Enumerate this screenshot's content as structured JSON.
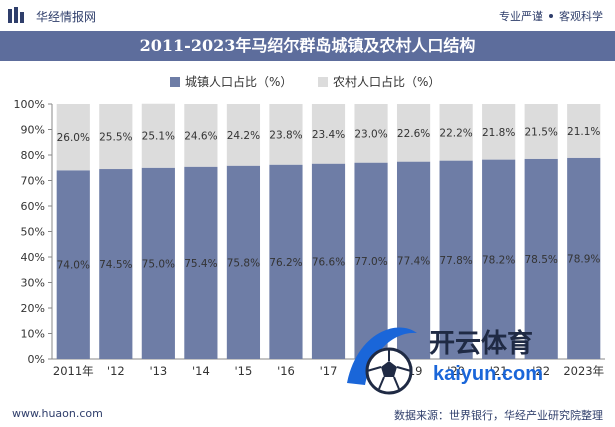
{
  "header": {
    "brand": "华经情报网",
    "slogan_left": "专业严谨",
    "slogan_right": "客观科学"
  },
  "title": "2011-2023年马绍尔群岛城镇及农村人口结构",
  "legend": {
    "urban": "城镇人口占比（%）",
    "rural": "农村人口占比（%）"
  },
  "colors": {
    "urban": "#6e7da6",
    "rural": "#dcdcdc",
    "title_bg": "#5d6d9c",
    "text": "#333333"
  },
  "chart_data": {
    "type": "bar",
    "stacked": true,
    "categories": [
      "2011年",
      "'12",
      "'13",
      "'14",
      "'15",
      "'16",
      "'17",
      "'18",
      "'19",
      "'20",
      "'21",
      "'22",
      "2023年"
    ],
    "series": [
      {
        "name": "城镇人口占比（%）",
        "values": [
          74.0,
          74.5,
          75.0,
          75.4,
          75.8,
          76.2,
          76.6,
          77.0,
          77.4,
          77.8,
          78.2,
          78.5,
          78.9
        ]
      },
      {
        "name": "农村人口占比（%）",
        "values": [
          26.0,
          25.5,
          25.1,
          24.6,
          24.2,
          23.8,
          23.4,
          23.0,
          22.6,
          22.2,
          21.8,
          21.5,
          21.1
        ]
      }
    ],
    "value_labels": {
      "urban": [
        "74.0%",
        "74.5%",
        "75.0%",
        "75.4%",
        "75.8%",
        "76.2%",
        "76.6%",
        "77.0%",
        "77.4%",
        "77.8%",
        "78.2%",
        "78.5%",
        "78.9%"
      ],
      "rural": [
        "26.0%",
        "25.5%",
        "25.1%",
        "24.6%",
        "24.2%",
        "23.8%",
        "23.4%",
        "23.0%",
        "22.6%",
        "22.2%",
        "21.8%",
        "21.5%",
        "21.1%"
      ]
    },
    "yticks": [
      "0%",
      "10%",
      "20%",
      "30%",
      "40%",
      "50%",
      "60%",
      "70%",
      "80%",
      "90%",
      "100%"
    ],
    "ylim": [
      0,
      100
    ],
    "grid": false,
    "legend_position": "top"
  },
  "footer": {
    "site": "www.huaon.com",
    "source": "数据来源：世界银行，华经产业研究院整理"
  },
  "watermark": {
    "brand": "开云体育",
    "url": "kaiyun.com"
  }
}
